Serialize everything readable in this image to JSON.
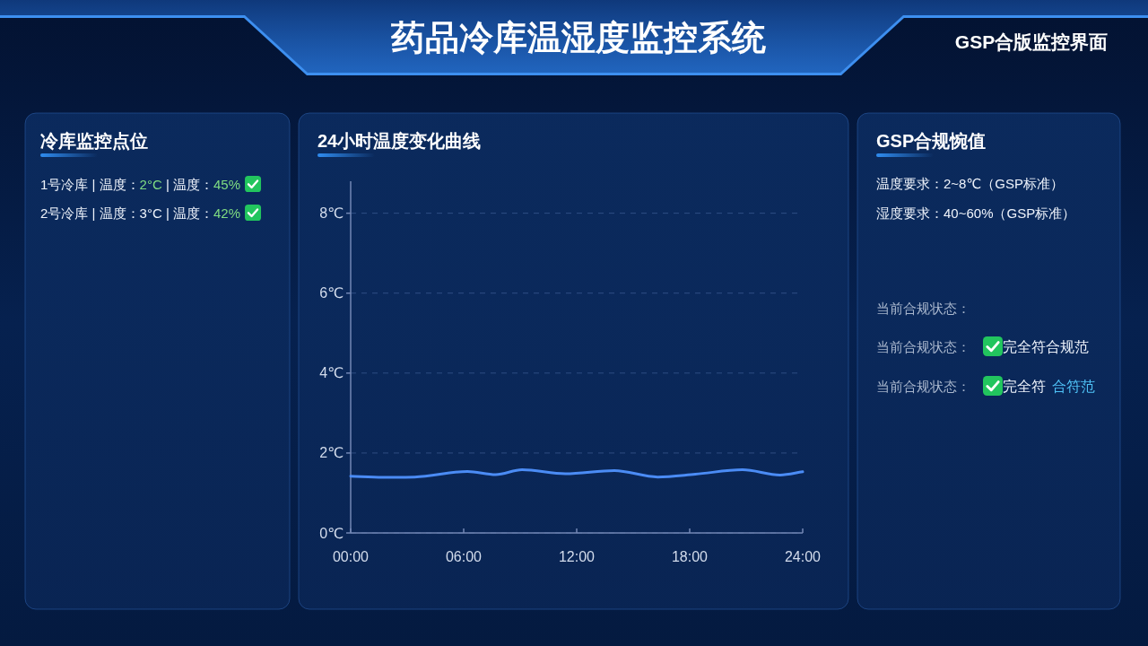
{
  "chart_data": [
    {
      "type": "other",
      "title": "药品冷库温湿度监控系统",
      "annotations": [
        "GSP合版监控界面"
      ]
    },
    {
      "type": "other",
      "title": "冷库监控点位",
      "annotations": [
        "1号冷库 | 温度：",
        "2°C",
        " | 温度：",
        "45%",
        "2号冷库 | 温度：",
        "3°C",
        " | 温度：",
        "42%"
      ]
    },
    {
      "type": "line",
      "title": "24小时温度变化曲线",
      "x": [
        0,
        1.7,
        3.4,
        6.2,
        7.7,
        9.1,
        11.4,
        14,
        16.3,
        18.3,
        20.8,
        22.8,
        24
      ],
      "series": [
        {
          "color": "#4b8cf5",
          "values": [
            1.42,
            1.39,
            1.4,
            1.54,
            1.46,
            1.58,
            1.48,
            1.56,
            1.4,
            1.47,
            1.58,
            1.45,
            1.53
          ]
        }
      ],
      "xlim": [
        0,
        24
      ],
      "xticks": [
        {
          "value": 0,
          "label": "00:00"
        },
        {
          "value": 6,
          "label": "06:00"
        },
        {
          "value": 12,
          "label": "12:00"
        },
        {
          "value": 18,
          "label": "18:00"
        },
        {
          "value": 24,
          "label": "24:00"
        }
      ],
      "ylim": [
        0,
        8.8
      ],
      "yticks": [
        {
          "value": 0,
          "label": "0℃"
        },
        {
          "value": 2,
          "label": "2℃"
        },
        {
          "value": 4,
          "label": "4℃"
        },
        {
          "value": 6,
          "label": "6℃"
        },
        {
          "value": 8,
          "label": "8℃"
        }
      ],
      "grid": "y"
    },
    {
      "type": "other",
      "title": "GSP合规惋值",
      "annotations": [
        "温度要求：2~8℃（GSP标准）",
        "湿度要求：40~60%（GSP标准）",
        "当前合规状态：",
        "当前合规状态：",
        "完全符合规范",
        "当前合规状态：",
        "完全符",
        "合符范"
      ]
    }
  ]
}
